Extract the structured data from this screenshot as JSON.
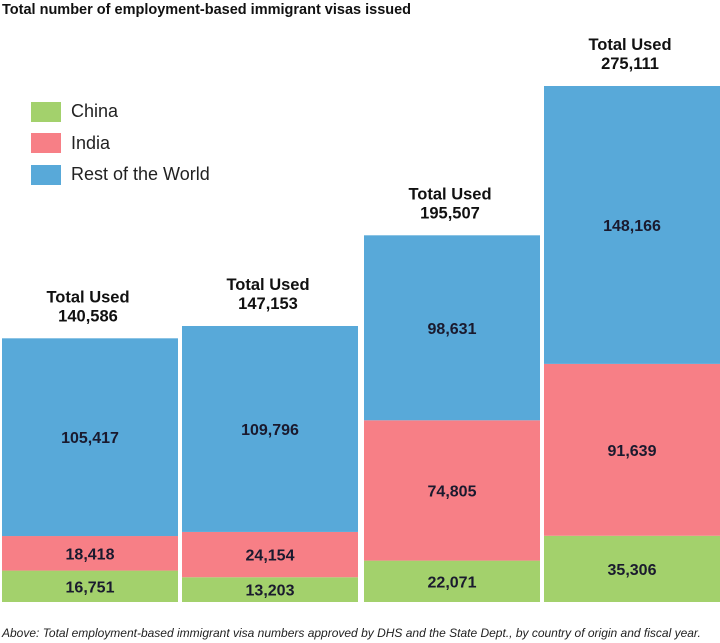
{
  "chart_data": {
    "type": "stacked-bar",
    "title": "Total number of employment-based immigrant visas issued",
    "caption": "Above: Total employment-based immigrant visa numbers approved by DHS and the State Dept., by country of origin and fiscal year.",
    "total_label": "Total Used",
    "legend": [
      {
        "name": "China",
        "color": "#a3d16c"
      },
      {
        "name": "India",
        "color": "#f77f86"
      },
      {
        "name": "Rest of the World",
        "color": "#58a9d9"
      }
    ],
    "series": [
      {
        "name": "China",
        "color": "#a3d16c",
        "values": [
          16751,
          13203,
          22071,
          35306
        ],
        "labels": [
          "16,751",
          "13,203",
          "22,071",
          "35,306"
        ]
      },
      {
        "name": "India",
        "color": "#f77f86",
        "values": [
          18418,
          24154,
          74805,
          91639
        ],
        "labels": [
          "18,418",
          "24,154",
          "74,805",
          "91,639"
        ]
      },
      {
        "name": "Rest of the World",
        "color": "#58a9d9",
        "values": [
          105417,
          109796,
          98631,
          148166
        ],
        "labels": [
          "105,417",
          "109,796",
          "98,631",
          "148,166"
        ]
      }
    ],
    "totals": [
      140586,
      147153,
      195507,
      275111
    ],
    "total_labels": [
      "140,586",
      "147,153",
      "195,507",
      "275,111"
    ],
    "ylim": [
      0,
      275111
    ],
    "xlabel": "",
    "ylabel": ""
  }
}
